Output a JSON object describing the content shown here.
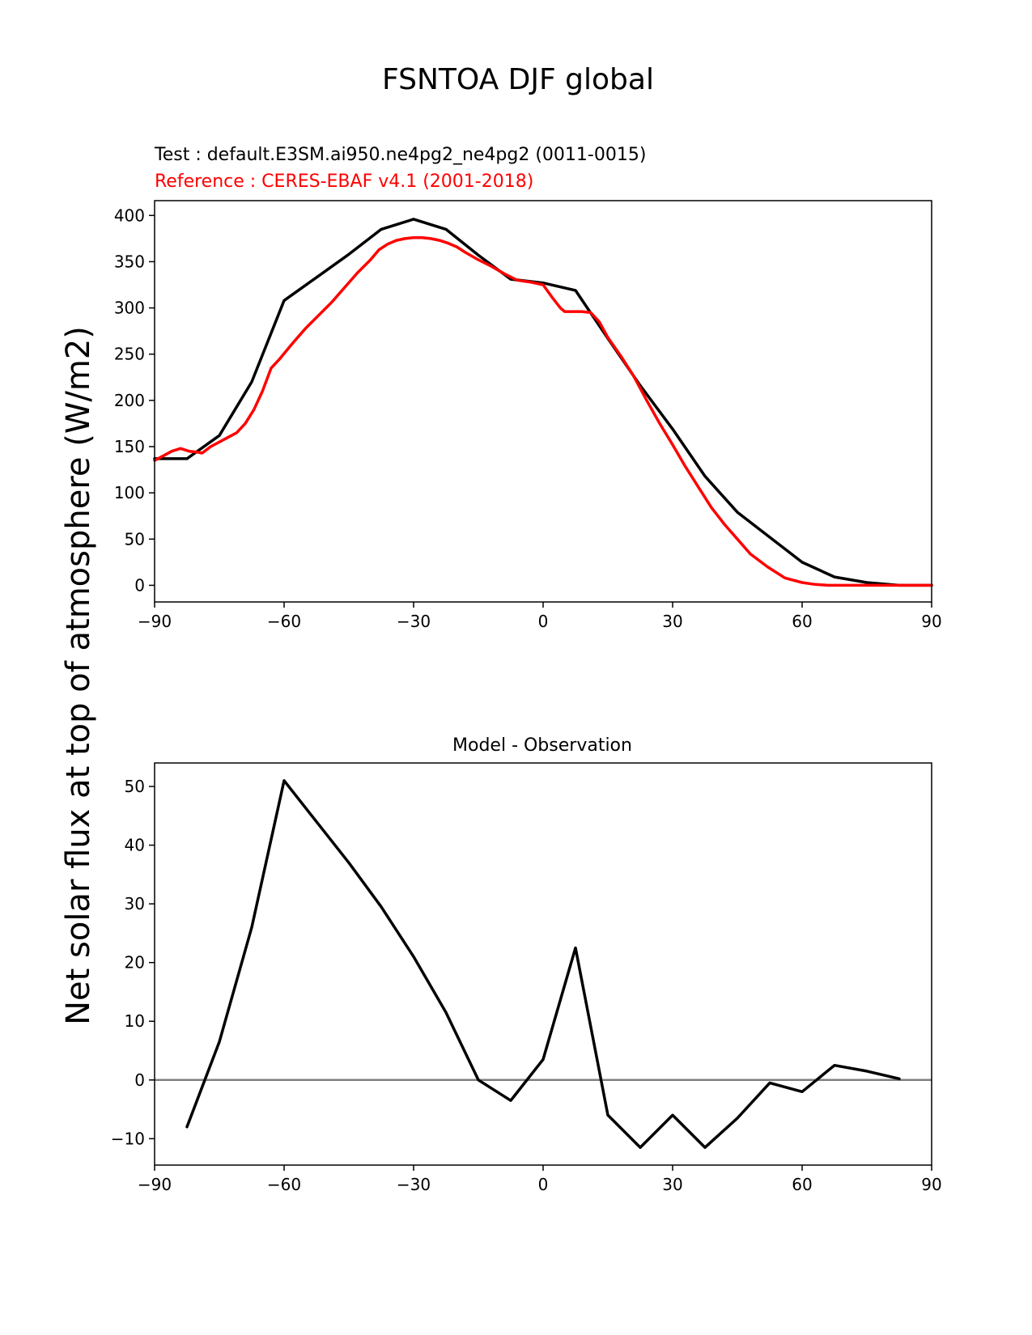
{
  "chart_data": {
    "suptitle": "FSNTOA DJF global",
    "ylabel": "Net solar flux at top of atmosphere (W/m2)",
    "panels": [
      {
        "type": "line",
        "test_label": "Test : default.E3SM.ai950.ne4pg2_ne4pg2 (0011-0015)",
        "reference_label": "Reference : CERES-EBAF v4.1 (2001-2018)",
        "xlim": [
          -90,
          90
        ],
        "ylim": [
          -18,
          416
        ],
        "xticks": [
          -90,
          -60,
          -30,
          0,
          30,
          60,
          90
        ],
        "yticks": [
          0,
          50,
          100,
          150,
          200,
          250,
          300,
          350,
          400
        ],
        "series": [
          {
            "name": "Test",
            "color": "#000000",
            "x": [
              -90,
              -82.5,
              -75,
              -67.5,
              -60,
              -52.5,
              -45,
              -37.5,
              -30,
              -22.5,
              -15,
              -7.5,
              0,
              7.5,
              15,
              22.5,
              30,
              37.5,
              45,
              52.5,
              60,
              67.5,
              75,
              82.5,
              90
            ],
            "y": [
              137,
              137,
              162,
              220,
              308,
              333,
              358,
              385,
              396,
              385,
              357,
              331,
              327,
              319,
              267,
              216,
              169,
              118,
              79,
              52,
              25,
              9,
              3,
              0,
              0
            ]
          },
          {
            "name": "Reference",
            "color": "#ff0000",
            "x": [
              -90,
              -88,
              -86,
              -84,
              -82,
              -80,
              -79,
              -77,
              -75,
              -73,
              -71,
              -69,
              -67,
              -65,
              -63,
              -61,
              -58,
              -55,
              -52,
              -49,
              -46,
              -43,
              -40,
              -38,
              -36,
              -34,
              -32,
              -30,
              -28,
              -26,
              -24,
              -22,
              -20,
              -18,
              -15,
              -12,
              -9,
              -6,
              -3,
              0,
              2,
              4,
              5,
              7,
              9,
              11,
              13,
              15,
              18,
              21,
              24,
              27,
              30,
              33,
              36,
              39,
              42,
              45,
              48,
              52,
              56,
              60,
              63,
              66,
              69,
              72,
              75,
              80,
              85,
              90
            ],
            "y": [
              135,
              140,
              145,
              148,
              145,
              144,
              143,
              150,
              155,
              160,
              165,
              175,
              190,
              210,
              235,
              245,
              262,
              278,
              292,
              306,
              322,
              338,
              352,
              363,
              369,
              373,
              375,
              376,
              376,
              375,
              373,
              370,
              366,
              360,
              352,
              345,
              337,
              330,
              328,
              325,
              312,
              300,
              296,
              296,
              296,
              295,
              285,
              268,
              248,
              226,
              200,
              175,
              152,
              128,
              106,
              84,
              66,
              50,
              34,
              20,
              8,
              3,
              1,
              0,
              0,
              0,
              0,
              0,
              0,
              0
            ]
          }
        ]
      },
      {
        "type": "line",
        "title": "Model - Observation",
        "xlim": [
          -90,
          90
        ],
        "ylim": [
          -14.5,
          54
        ],
        "xticks": [
          -90,
          -60,
          -30,
          0,
          30,
          60,
          90
        ],
        "yticks": [
          -10,
          0,
          10,
          20,
          30,
          40,
          50
        ],
        "zero_line_color": "#808080",
        "series": [
          {
            "name": "Model - Observation",
            "color": "#000000",
            "x": [
              -82.5,
              -75,
              -67.5,
              -60,
              -52.5,
              -45,
              -37.5,
              -30,
              -22.5,
              -15,
              -7.5,
              0,
              7.5,
              15,
              22.5,
              30,
              37.5,
              45,
              52.5,
              60,
              67.5,
              75,
              82.5
            ],
            "y": [
              -8,
              6.5,
              26,
              51,
              44,
              37,
              29.5,
              21,
              11.5,
              0,
              -3.5,
              3.5,
              22.5,
              -6,
              -11.5,
              -6,
              -11.5,
              -6.5,
              -0.5,
              -2,
              2.5,
              1.5,
              0.2
            ]
          }
        ]
      }
    ]
  }
}
